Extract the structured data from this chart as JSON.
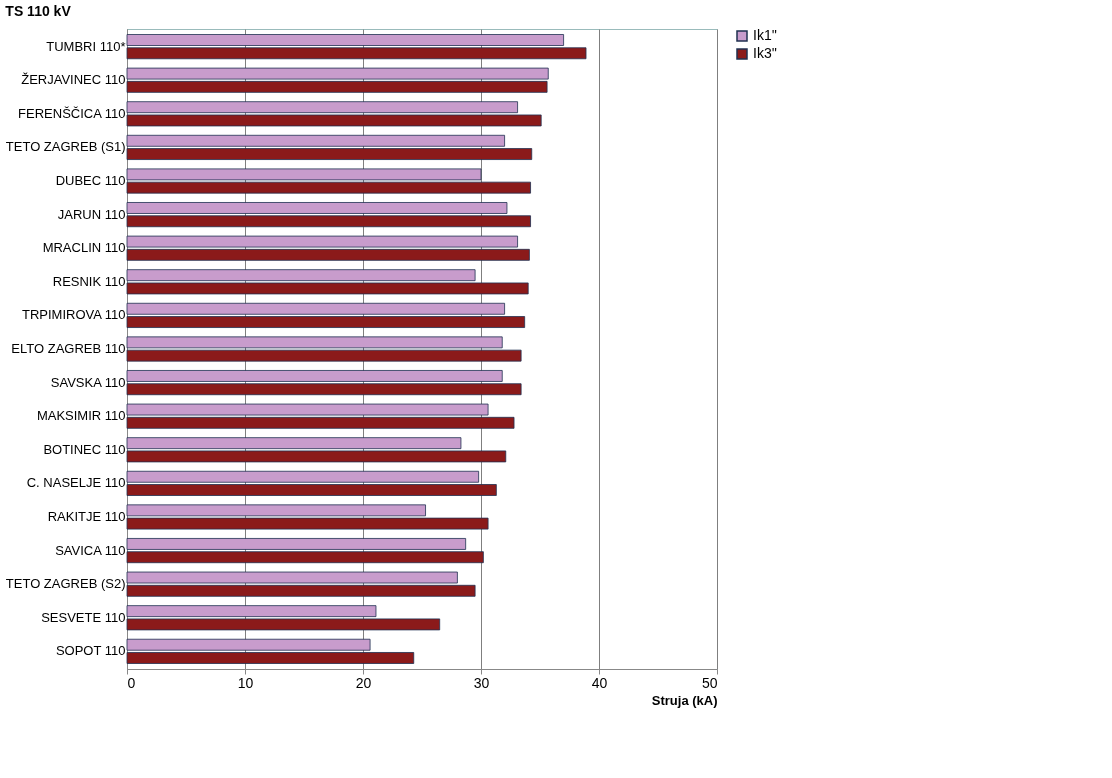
{
  "chart_data": {
    "type": "bar",
    "orientation": "horizontal",
    "title": "TS 110 kV",
    "xlabel": "Struja (kA)",
    "categories": [
      "TUMBRI 110*",
      "ŽERJAVINEC 110",
      "FERENŠČICA 110",
      "TETO ZAGREB (S1)",
      "DUBEC 110",
      "JARUN 110",
      "MRACLIN 110",
      "RESNIK 110",
      "TRPIMIROVA 110",
      "ELTO ZAGREB 110",
      "SAVSKA 110",
      "MAKSIMIR 110",
      "BOTINEC 110",
      "C. NASELJE 110",
      "RAKITJE 110",
      "SAVICA 110",
      "TETO ZAGREB (S2)",
      "SESVETE 110",
      "SOPOT 110"
    ],
    "series": [
      {
        "name": "Ik1''",
        "color": "#c89ccc",
        "values": [
          37.0,
          35.7,
          33.1,
          32.0,
          30.0,
          32.2,
          33.1,
          29.5,
          32.0,
          31.8,
          31.8,
          30.6,
          28.3,
          29.8,
          25.3,
          28.7,
          28.0,
          21.1,
          20.6
        ]
      },
      {
        "name": "Ik3''",
        "color": "#8b1a1a",
        "values": [
          38.9,
          35.6,
          35.1,
          34.3,
          34.2,
          34.2,
          34.1,
          34.0,
          33.7,
          33.4,
          33.4,
          32.8,
          32.1,
          31.3,
          30.6,
          30.2,
          29.5,
          26.5,
          24.3
        ]
      }
    ],
    "xlim": [
      0,
      50
    ],
    "xticks": [
      0,
      10,
      20,
      30,
      40,
      50
    ],
    "grid": "x",
    "legend": "right"
  }
}
